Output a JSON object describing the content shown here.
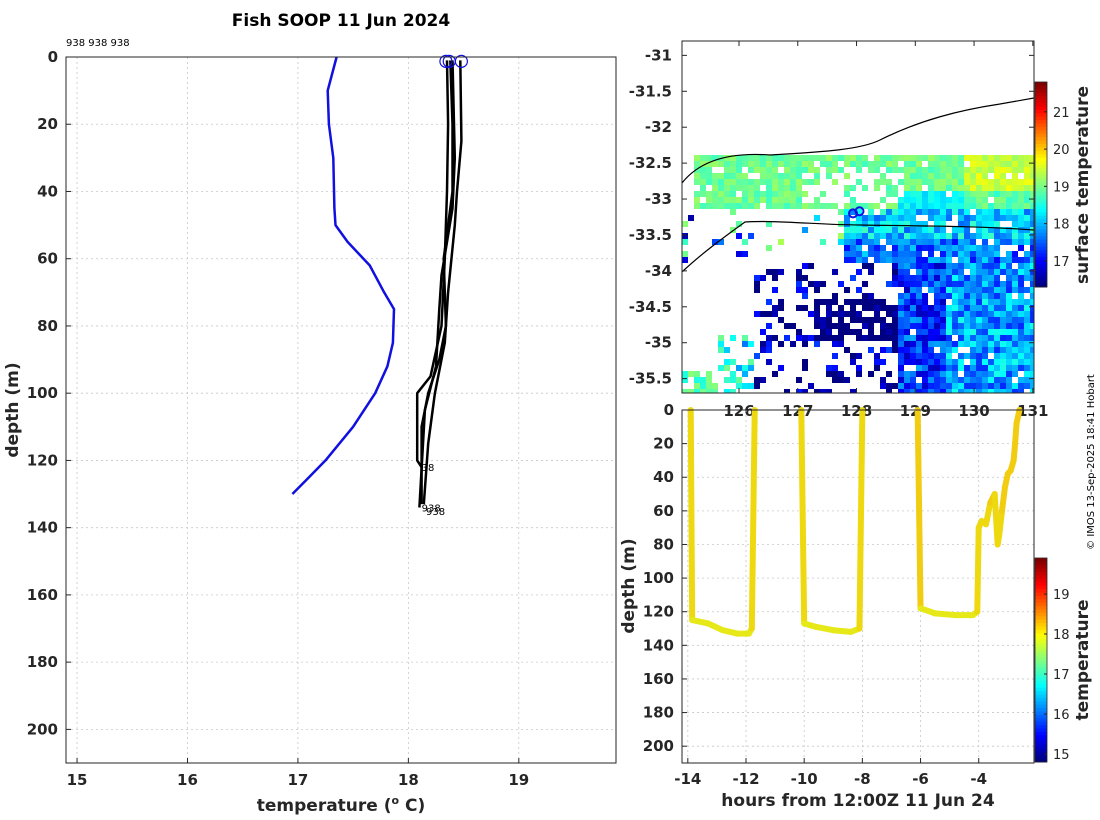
{
  "title": "Fish SOOP 11 Jun 2024",
  "credit": "© IMOS 13-Sep-2025 18:41 Hobart",
  "colors": {
    "reference_profile": "#1010e0",
    "profiles": "#000000",
    "track_line": "#f2dd10",
    "coastline": "#000000"
  },
  "chart_data": [
    {
      "type": "line",
      "name": "temperature-profiles",
      "header_text": "938 938 938",
      "xlabel": "temperature (o C)",
      "xlabel_main": "temperature (",
      "xlabel_sup": "o",
      "xlabel_end": " C)",
      "ylabel": "depth (m)",
      "xlim": [
        14.9,
        19.88
      ],
      "ylim": [
        210,
        0
      ],
      "xticks": [
        15,
        16,
        17,
        18,
        19
      ],
      "yticks": [
        0,
        20,
        40,
        60,
        80,
        100,
        120,
        140,
        160,
        180,
        200
      ],
      "annotations": [
        {
          "text": "38",
          "x": 18.12,
          "y": 122
        },
        {
          "text": "938",
          "x": 18.12,
          "y": 134
        },
        {
          "text": "938",
          "x": 18.16,
          "y": 135
        }
      ],
      "series": [
        {
          "name": "reference",
          "color": "#1010e0",
          "points": [
            [
              17.35,
              0
            ],
            [
              17.27,
              10
            ],
            [
              17.28,
              20
            ],
            [
              17.32,
              30
            ],
            [
              17.33,
              45
            ],
            [
              17.34,
              50
            ],
            [
              17.45,
              55
            ],
            [
              17.65,
              62
            ],
            [
              17.78,
              70
            ],
            [
              17.87,
              75
            ],
            [
              17.86,
              85
            ],
            [
              17.81,
              92
            ],
            [
              17.7,
              100
            ],
            [
              17.5,
              110
            ],
            [
              17.25,
              120
            ],
            [
              17.1,
              125
            ],
            [
              16.95,
              130
            ]
          ]
        },
        {
          "name": "profile-1",
          "color": "#000000",
          "points": [
            [
              18.35,
              1
            ],
            [
              18.36,
              20
            ],
            [
              18.35,
              40
            ],
            [
              18.33,
              60
            ],
            [
              18.3,
              80
            ],
            [
              18.2,
              95
            ],
            [
              18.08,
              100
            ],
            [
              18.08,
              120
            ],
            [
              18.12,
              122
            ]
          ]
        },
        {
          "name": "profile-2",
          "color": "#000000",
          "points": [
            [
              18.38,
              1
            ],
            [
              18.4,
              20
            ],
            [
              18.4,
              40
            ],
            [
              18.36,
              50
            ],
            [
              18.32,
              60
            ],
            [
              18.34,
              80
            ],
            [
              18.28,
              90
            ],
            [
              18.18,
              100
            ],
            [
              18.12,
              110
            ],
            [
              18.12,
              133
            ]
          ]
        },
        {
          "name": "profile-3",
          "color": "#000000",
          "points": [
            [
              18.47,
              1
            ],
            [
              18.48,
              25
            ],
            [
              18.44,
              40
            ],
            [
              18.42,
              50
            ],
            [
              18.36,
              70
            ],
            [
              18.33,
              85
            ],
            [
              18.24,
              100
            ],
            [
              18.18,
              115
            ],
            [
              18.14,
              133
            ]
          ]
        },
        {
          "name": "profile-4",
          "color": "#000000",
          "points": [
            [
              18.4,
              1
            ],
            [
              18.42,
              30
            ],
            [
              18.4,
              45
            ],
            [
              18.35,
              55
            ],
            [
              18.3,
              65
            ],
            [
              18.28,
              75
            ],
            [
              18.25,
              92
            ],
            [
              18.15,
              105
            ],
            [
              18.1,
              134
            ]
          ]
        }
      ],
      "markers": [
        {
          "x": 18.34,
          "y": 1
        },
        {
          "x": 18.37,
          "y": 1
        },
        {
          "x": 18.48,
          "y": 1
        }
      ]
    },
    {
      "type": "heatmap",
      "name": "surface-temperature-map",
      "xticks": [
        126,
        127,
        128,
        129,
        130,
        131
      ],
      "yticks": [
        -31,
        -31.5,
        -32,
        -32.5,
        -33,
        -33.5,
        -34,
        -34.5,
        -35,
        -35.5
      ],
      "xlim": [
        125.03,
        131.02
      ],
      "ylim": [
        -35.7,
        -30.8
      ],
      "colorbar": {
        "label": "surface temperature",
        "range": [
          16.3,
          21.8
        ],
        "ticks": [
          17,
          18,
          19,
          20,
          21
        ]
      },
      "positions": [
        [
          127.94,
          -33.2
        ],
        [
          128.05,
          -33.17
        ]
      ]
    },
    {
      "type": "line",
      "name": "depth-vs-time",
      "xlabel": "hours from 12:00Z 11 Jun 24",
      "ylabel": "depth (m)",
      "xlim": [
        -14.2,
        -2.1
      ],
      "ylim": [
        210,
        0
      ],
      "xticks": [
        -14,
        -12,
        -10,
        -8,
        -6,
        -4
      ],
      "yticks": [
        0,
        20,
        40,
        60,
        80,
        100,
        120,
        140,
        160,
        180,
        200
      ],
      "colorbar": {
        "label": "temperature",
        "range": [
          14.8,
          19.9
        ],
        "ticks": [
          15,
          16,
          17,
          18,
          19
        ]
      },
      "segments": [
        {
          "points": [
            [
              -13.9,
              0
            ],
            [
              -13.85,
              125
            ],
            [
              -13.3,
              127
            ],
            [
              -12.8,
              131
            ],
            [
              -12.3,
              133
            ],
            [
              -11.9,
              133
            ],
            [
              -11.8,
              130
            ],
            [
              -11.7,
              0
            ]
          ]
        },
        {
          "points": [
            [
              -10.1,
              0
            ],
            [
              -10.0,
              127
            ],
            [
              -9.6,
              129
            ],
            [
              -9.0,
              131
            ],
            [
              -8.4,
              132
            ],
            [
              -8.1,
              130
            ],
            [
              -8.0,
              0
            ]
          ]
        },
        {
          "points": [
            [
              -6.1,
              0
            ],
            [
              -6.0,
              118
            ],
            [
              -5.5,
              121
            ],
            [
              -4.8,
              122
            ],
            [
              -4.2,
              122
            ],
            [
              -4.05,
              120
            ],
            [
              -4.0,
              70
            ],
            [
              -3.9,
              66
            ],
            [
              -3.75,
              68
            ],
            [
              -3.6,
              55
            ],
            [
              -3.45,
              50
            ],
            [
              -3.35,
              80
            ],
            [
              -3.3,
              75
            ],
            [
              -3.2,
              60
            ],
            [
              -3.1,
              46
            ],
            [
              -3.0,
              38
            ],
            [
              -2.9,
              36
            ],
            [
              -2.8,
              30
            ],
            [
              -2.75,
              20
            ],
            [
              -2.7,
              8
            ],
            [
              -2.6,
              0
            ]
          ]
        }
      ]
    }
  ]
}
